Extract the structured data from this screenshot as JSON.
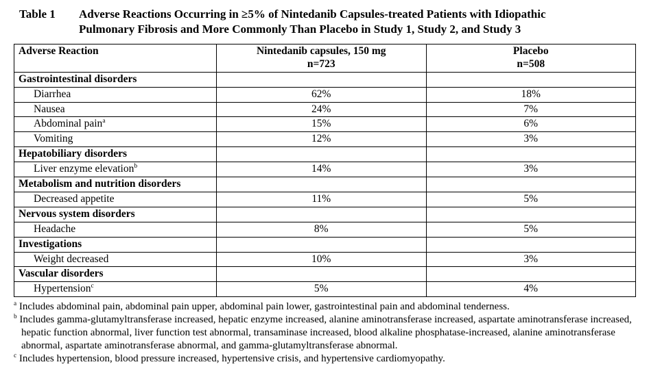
{
  "title": {
    "label": "Table 1",
    "text": "Adverse Reactions Occurring in ≥5% of Nintedanib Capsules-treated Patients with Idiopathic Pulmonary Fibrosis and More Commonly Than Placebo in Study 1, Study 2, and Study 3"
  },
  "table": {
    "columns": [
      {
        "header": "Adverse Reaction",
        "subheader": ""
      },
      {
        "header": "Nintedanib capsules, 150 mg",
        "subheader": "n=723"
      },
      {
        "header": "Placebo",
        "subheader": "n=508"
      }
    ],
    "rows": [
      {
        "type": "category",
        "name": "Gastrointestinal disorders",
        "sup": "",
        "values": [
          "",
          ""
        ]
      },
      {
        "type": "item",
        "name": "Diarrhea",
        "sup": "",
        "values": [
          "62%",
          "18%"
        ]
      },
      {
        "type": "item",
        "name": "Nausea",
        "sup": "",
        "values": [
          "24%",
          "7%"
        ]
      },
      {
        "type": "item",
        "name": "Abdominal pain",
        "sup": "a",
        "values": [
          "15%",
          "6%"
        ]
      },
      {
        "type": "item",
        "name": "Vomiting",
        "sup": "",
        "values": [
          "12%",
          "3%"
        ]
      },
      {
        "type": "category",
        "name": "Hepatobiliary disorders",
        "sup": "",
        "values": [
          "",
          ""
        ]
      },
      {
        "type": "item",
        "name": "Liver enzyme elevation",
        "sup": "b",
        "values": [
          "14%",
          "3%"
        ]
      },
      {
        "type": "category",
        "name": "Metabolism and nutrition disorders",
        "sup": "",
        "values": [
          "",
          ""
        ]
      },
      {
        "type": "item",
        "name": "Decreased appetite",
        "sup": "",
        "values": [
          "11%",
          "5%"
        ]
      },
      {
        "type": "category",
        "name": "Nervous system disorders",
        "sup": "",
        "values": [
          "",
          ""
        ]
      },
      {
        "type": "item",
        "name": "Headache",
        "sup": "",
        "values": [
          "8%",
          "5%"
        ]
      },
      {
        "type": "category",
        "name": "Investigations",
        "sup": "",
        "values": [
          "",
          ""
        ]
      },
      {
        "type": "item",
        "name": "Weight decreased",
        "sup": "",
        "values": [
          "10%",
          "3%"
        ]
      },
      {
        "type": "category",
        "name": "Vascular disorders",
        "sup": "",
        "values": [
          "",
          ""
        ]
      },
      {
        "type": "item",
        "name": "Hypertension",
        "sup": "c",
        "values": [
          "5%",
          "4%"
        ]
      }
    ]
  },
  "footnotes": [
    {
      "marker": "a",
      "text": "Includes abdominal pain, abdominal pain upper, abdominal pain lower, gastrointestinal pain and abdominal tenderness."
    },
    {
      "marker": "b",
      "text": "Includes gamma-glutamyltransferase increased, hepatic enzyme increased, alanine aminotransferase increased, aspartate aminotransferase increased, hepatic function abnormal, liver function test abnormal, transaminase increased, blood alkaline phosphatase-increased, alanine aminotransferase abnormal, aspartate aminotransferase abnormal, and gamma-glutamyltransferase abnormal."
    },
    {
      "marker": "c",
      "text": "Includes hypertension, blood pressure increased, hypertensive crisis, and hypertensive cardiomyopathy."
    }
  ]
}
